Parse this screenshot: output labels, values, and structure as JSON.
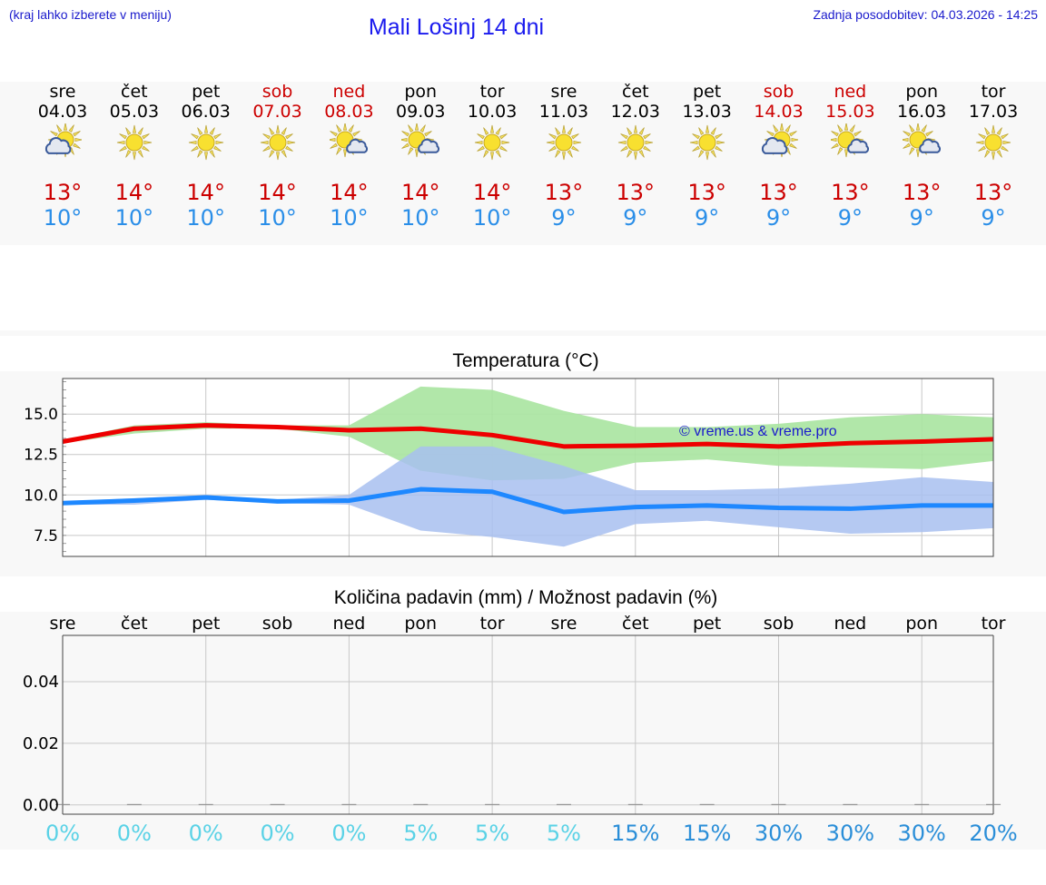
{
  "header": {
    "hint": "(kraj lahko izberete v meniju)",
    "title": "Mali Lošinj 14 dni",
    "updated": "Zadnja posodobitev: 04.03.2026 - 14:25"
  },
  "days": [
    {
      "name": "sre",
      "date": "04.03",
      "weekend": false,
      "icon": "sun-cloud-left",
      "max": "13°",
      "min": "10°"
    },
    {
      "name": "čet",
      "date": "05.03",
      "weekend": false,
      "icon": "sun",
      "max": "14°",
      "min": "10°"
    },
    {
      "name": "pet",
      "date": "06.03",
      "weekend": false,
      "icon": "sun",
      "max": "14°",
      "min": "10°"
    },
    {
      "name": "sob",
      "date": "07.03",
      "weekend": true,
      "icon": "sun",
      "max": "14°",
      "min": "10°"
    },
    {
      "name": "ned",
      "date": "08.03",
      "weekend": true,
      "icon": "sun-cloud-right",
      "max": "14°",
      "min": "10°"
    },
    {
      "name": "pon",
      "date": "09.03",
      "weekend": false,
      "icon": "sun-cloud-right",
      "max": "14°",
      "min": "10°"
    },
    {
      "name": "tor",
      "date": "10.03",
      "weekend": false,
      "icon": "sun",
      "max": "14°",
      "min": "10°"
    },
    {
      "name": "sre",
      "date": "11.03",
      "weekend": false,
      "icon": "sun",
      "max": "13°",
      "min": "9°"
    },
    {
      "name": "čet",
      "date": "12.03",
      "weekend": false,
      "icon": "sun",
      "max": "13°",
      "min": "9°"
    },
    {
      "name": "pet",
      "date": "13.03",
      "weekend": false,
      "icon": "sun",
      "max": "13°",
      "min": "9°"
    },
    {
      "name": "sob",
      "date": "14.03",
      "weekend": true,
      "icon": "sun-cloud-left",
      "max": "13°",
      "min": "9°"
    },
    {
      "name": "ned",
      "date": "15.03",
      "weekend": true,
      "icon": "sun-cloud-right",
      "max": "13°",
      "min": "9°"
    },
    {
      "name": "pon",
      "date": "16.03",
      "weekend": false,
      "icon": "sun-cloud-right",
      "max": "13°",
      "min": "9°"
    },
    {
      "name": "tor",
      "date": "17.03",
      "weekend": false,
      "icon": "sun",
      "max": "13°",
      "min": "9°"
    }
  ],
  "colors": {
    "max_line": "#ee0000",
    "min_line": "#1e88ff",
    "max_band": "#a8e4a0",
    "min_band": "#a8c0f0",
    "weekend": "#cc0000",
    "prob_low": "#5ad2e6",
    "prob_high": "#2a8ed8"
  },
  "watermark": "© vreme.us & vreme.pro",
  "chart_data": [
    {
      "type": "line",
      "title": "Temperatura (°C)",
      "xlabel": "",
      "ylabel": "",
      "x": [
        0,
        1,
        2,
        3,
        4,
        5,
        6,
        7,
        8,
        9,
        10,
        11,
        12,
        13
      ],
      "ylim": [
        6.2,
        17.2
      ],
      "yticks": [
        7.5,
        10.0,
        12.5,
        15.0
      ],
      "ytick_labels": [
        "7.5",
        "10.0",
        "12.5",
        "15.0"
      ],
      "series": [
        {
          "name": "max",
          "values": [
            13.3,
            14.1,
            14.3,
            14.2,
            14.0,
            14.1,
            13.7,
            13.0,
            13.05,
            13.15,
            13.0,
            13.2,
            13.3,
            13.45
          ],
          "band_low": [
            13.2,
            13.8,
            14.1,
            14.1,
            13.6,
            11.5,
            10.9,
            11.0,
            12.0,
            12.2,
            11.8,
            11.7,
            11.6,
            12.1
          ],
          "band_high": [
            13.4,
            14.3,
            14.5,
            14.3,
            14.3,
            16.7,
            16.5,
            15.2,
            14.2,
            14.2,
            14.4,
            14.8,
            15.0,
            14.8
          ]
        },
        {
          "name": "min",
          "values": [
            9.5,
            9.65,
            9.85,
            9.6,
            9.65,
            10.35,
            10.2,
            8.95,
            9.25,
            9.35,
            9.2,
            9.15,
            9.35,
            9.35
          ],
          "band_low": [
            9.4,
            9.4,
            9.7,
            9.5,
            9.4,
            7.8,
            7.4,
            6.8,
            8.2,
            8.4,
            8.0,
            7.6,
            7.7,
            7.95
          ],
          "band_high": [
            9.6,
            9.8,
            10.0,
            9.7,
            10.0,
            13.0,
            13.0,
            11.8,
            10.3,
            10.3,
            10.4,
            10.7,
            11.1,
            10.8
          ]
        }
      ]
    },
    {
      "type": "bar",
      "title": "Količina padavin (mm) / Možnost padavin (%)",
      "categories": [
        "sre",
        "čet",
        "pet",
        "sob",
        "ned",
        "pon",
        "tor",
        "sre",
        "čet",
        "pet",
        "sob",
        "ned",
        "pon",
        "tor"
      ],
      "values": [
        0,
        0,
        0,
        0,
        0,
        0,
        0,
        0,
        0,
        0,
        0,
        0,
        0,
        0
      ],
      "ylim": [
        -0.003,
        0.055
      ],
      "yticks": [
        0.0,
        0.02,
        0.04
      ],
      "ytick_labels": [
        "0.00",
        "0.02",
        "0.04"
      ],
      "probability": [
        "0%",
        "0%",
        "0%",
        "0%",
        "0%",
        "5%",
        "5%",
        "5%",
        "15%",
        "15%",
        "30%",
        "30%",
        "30%",
        "20%"
      ],
      "probability_values": [
        0,
        0,
        0,
        0,
        0,
        5,
        5,
        5,
        15,
        15,
        30,
        30,
        30,
        20
      ]
    }
  ]
}
